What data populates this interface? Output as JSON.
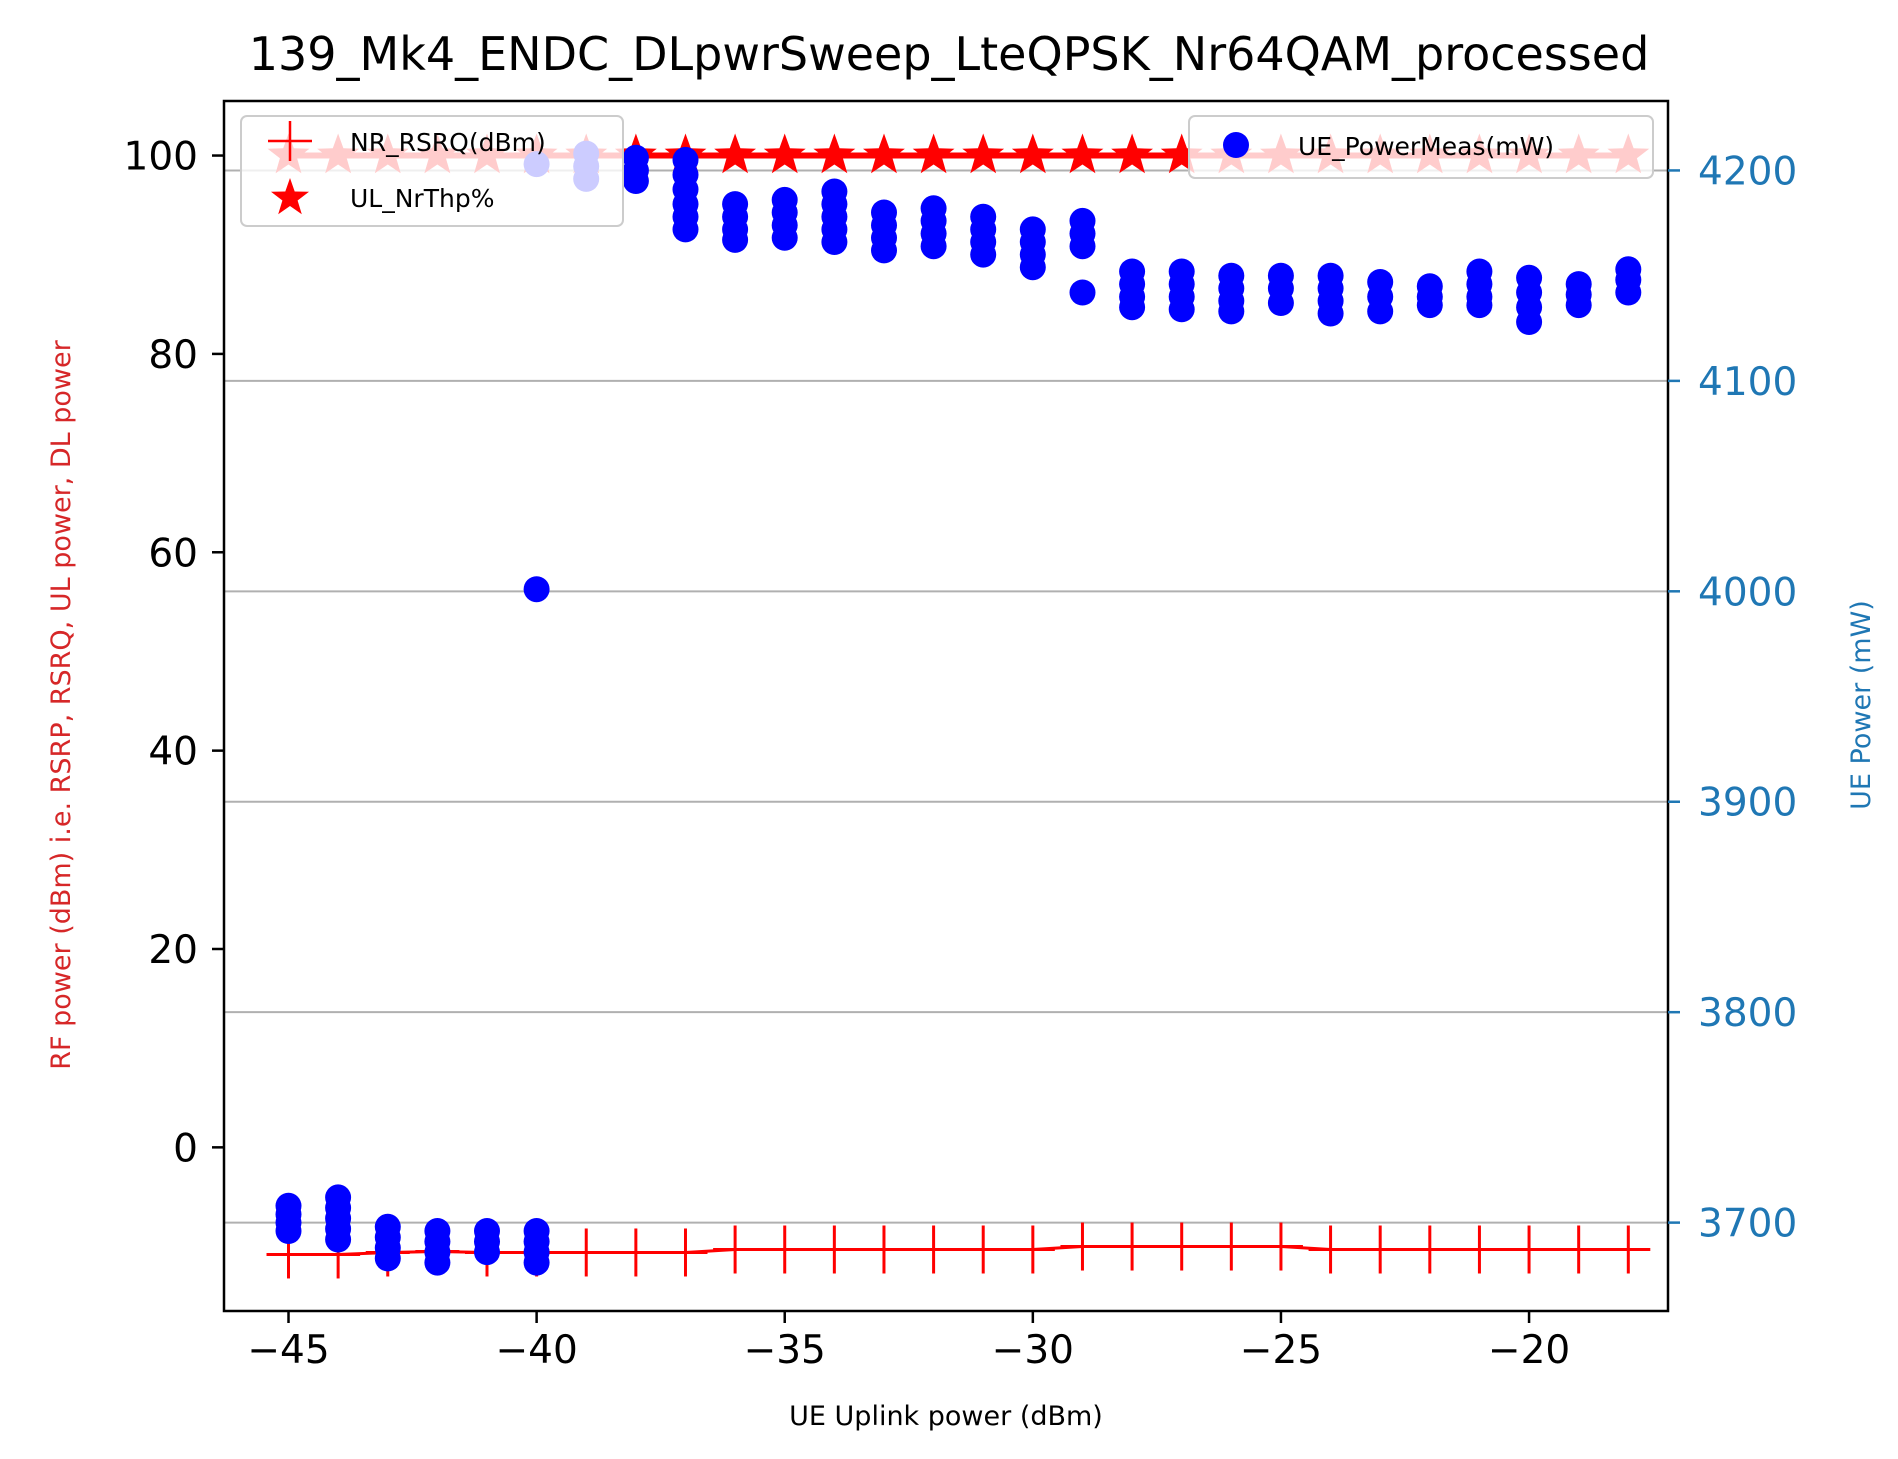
{
  "chart_data": {
    "type": "scatter",
    "title": "139_Mk4_ENDC_DLpwrSweep_LteQPSK_Nr64QAM_processed",
    "xlabel": "UE Uplink power (dBm)",
    "ylabel_left": "RF power (dBm) i.e. RSRP, RSRQ, UL power, DL power",
    "ylabel_right": "UE Power (mW)",
    "xlim": [
      -46.3,
      -17.2
    ],
    "ylim_left": [
      -16.5,
      105.5
    ],
    "ylim_right": [
      3658,
      4233
    ],
    "x_ticks": [
      -45,
      -40,
      -35,
      -30,
      -25,
      -20
    ],
    "x_tick_labels": [
      "−45",
      "−40",
      "−35",
      "−30",
      "−25",
      "−20"
    ],
    "y_ticks_left": [
      0,
      20,
      40,
      60,
      80,
      100
    ],
    "y_ticks_right": [
      3700,
      3800,
      3900,
      4000,
      4100,
      4200
    ],
    "grid": "horizontal lines at right-axis ticks",
    "colors": {
      "left_axis_label": "#d62728",
      "right_axis": "#1f77b4",
      "nr_rsrq": "#ff0000",
      "ul_nrthp": "#ff0000",
      "ue_power": "#0000ff",
      "grid": "#b0b0b0"
    },
    "legend_left": {
      "placement": "upper-left",
      "entries": [
        {
          "label": "NR_RSRQ(dBm)",
          "marker": "plus",
          "color": "#ff0000"
        },
        {
          "label": "UL_NrThp%",
          "marker": "star",
          "color": "#ff0000"
        }
      ]
    },
    "legend_right": {
      "placement": "upper-right",
      "entries": [
        {
          "label": "UE_PowerMeas(mW)",
          "marker": "circle",
          "color": "#0000ff"
        }
      ]
    },
    "series": [
      {
        "name": "NR_RSRQ(dBm)",
        "axis": "left",
        "marker": "plus",
        "x": [
          -45,
          -44,
          -43,
          -42,
          -41,
          -40,
          -39,
          -38,
          -37,
          -36,
          -35,
          -34,
          -33,
          -32,
          -31,
          -30,
          -29,
          -28,
          -27,
          -26,
          -25,
          -24,
          -23,
          -22,
          -21,
          -20,
          -19,
          -18
        ],
        "y": [
          -10.8,
          -10.8,
          -10.6,
          -10.5,
          -10.6,
          -10.6,
          -10.6,
          -10.6,
          -10.6,
          -10.3,
          -10.3,
          -10.3,
          -10.3,
          -10.3,
          -10.3,
          -10.3,
          -10.0,
          -10.0,
          -10.0,
          -10.0,
          -10.0,
          -10.3,
          -10.3,
          -10.3,
          -10.3,
          -10.3,
          -10.3,
          -10.3
        ]
      },
      {
        "name": "UL_NrThp%",
        "axis": "left",
        "marker": "star",
        "x": [
          -45,
          -44,
          -43,
          -42,
          -41,
          -40,
          -39,
          -38,
          -37,
          -36,
          -35,
          -34,
          -33,
          -32,
          -31,
          -30,
          -29,
          -28,
          -27,
          -26,
          -25,
          -24,
          -23,
          -22,
          -21,
          -20,
          -19,
          -18
        ],
        "y": [
          100,
          100,
          100,
          100,
          100,
          100,
          100,
          100,
          100,
          100,
          100,
          100,
          100,
          100,
          100,
          100,
          100,
          100,
          100,
          100,
          100,
          100,
          100,
          100,
          100,
          100,
          100,
          100
        ]
      },
      {
        "name": "UE_PowerMeas(mW)",
        "axis": "right",
        "marker": "circle",
        "points": [
          [
            -45,
            3708
          ],
          [
            -45,
            3704
          ],
          [
            -45,
            3700
          ],
          [
            -45,
            3696
          ],
          [
            -44,
            3712
          ],
          [
            -44,
            3707
          ],
          [
            -44,
            3702
          ],
          [
            -44,
            3697
          ],
          [
            -44,
            3692
          ],
          [
            -43,
            3698
          ],
          [
            -43,
            3693
          ],
          [
            -43,
            3688
          ],
          [
            -43,
            3683
          ],
          [
            -42,
            3696
          ],
          [
            -42,
            3691
          ],
          [
            -42,
            3686
          ],
          [
            -42,
            3681
          ],
          [
            -41,
            3696
          ],
          [
            -41,
            3691
          ],
          [
            -41,
            3686
          ],
          [
            -40,
            4203
          ],
          [
            -40,
            4001
          ],
          [
            -40,
            3696
          ],
          [
            -40,
            3691
          ],
          [
            -40,
            3686
          ],
          [
            -40,
            3681
          ],
          [
            -39,
            4208
          ],
          [
            -39,
            4202
          ],
          [
            -39,
            4196
          ],
          [
            -38,
            4206
          ],
          [
            -38,
            4200
          ],
          [
            -38,
            4195
          ],
          [
            -37,
            4205
          ],
          [
            -37,
            4198
          ],
          [
            -37,
            4191
          ],
          [
            -37,
            4184
          ],
          [
            -37,
            4178
          ],
          [
            -37,
            4172
          ],
          [
            -36,
            4184
          ],
          [
            -36,
            4178
          ],
          [
            -36,
            4172
          ],
          [
            -36,
            4167
          ],
          [
            -35,
            4186
          ],
          [
            -35,
            4180
          ],
          [
            -35,
            4174
          ],
          [
            -35,
            4168
          ],
          [
            -34,
            4190
          ],
          [
            -34,
            4184
          ],
          [
            -34,
            4178
          ],
          [
            -34,
            4172
          ],
          [
            -34,
            4166
          ],
          [
            -33,
            4180
          ],
          [
            -33,
            4174
          ],
          [
            -33,
            4168
          ],
          [
            -33,
            4162
          ],
          [
            -32,
            4182
          ],
          [
            -32,
            4176
          ],
          [
            -32,
            4170
          ],
          [
            -32,
            4164
          ],
          [
            -31,
            4178
          ],
          [
            -31,
            4172
          ],
          [
            -31,
            4166
          ],
          [
            -31,
            4160
          ],
          [
            -30,
            4172
          ],
          [
            -30,
            4166
          ],
          [
            -30,
            4160
          ],
          [
            -30,
            4154
          ],
          [
            -29,
            4176
          ],
          [
            -29,
            4170
          ],
          [
            -29,
            4164
          ],
          [
            -29,
            4142
          ],
          [
            -28,
            4152
          ],
          [
            -28,
            4146
          ],
          [
            -28,
            4140
          ],
          [
            -28,
            4135
          ],
          [
            -27,
            4152
          ],
          [
            -27,
            4146
          ],
          [
            -27,
            4140
          ],
          [
            -27,
            4134
          ],
          [
            -26,
            4150
          ],
          [
            -26,
            4144
          ],
          [
            -26,
            4138
          ],
          [
            -26,
            4133
          ],
          [
            -25,
            4150
          ],
          [
            -25,
            4144
          ],
          [
            -25,
            4137
          ],
          [
            -24,
            4150
          ],
          [
            -24,
            4144
          ],
          [
            -24,
            4138
          ],
          [
            -24,
            4132
          ],
          [
            -23,
            4147
          ],
          [
            -23,
            4140
          ],
          [
            -23,
            4133
          ],
          [
            -22,
            4145
          ],
          [
            -22,
            4140
          ],
          [
            -22,
            4136
          ],
          [
            -21,
            4152
          ],
          [
            -21,
            4146
          ],
          [
            -21,
            4140
          ],
          [
            -21,
            4136
          ],
          [
            -20,
            4149
          ],
          [
            -20,
            4142
          ],
          [
            -20,
            4135
          ],
          [
            -20,
            4128
          ],
          [
            -19,
            4146
          ],
          [
            -19,
            4141
          ],
          [
            -19,
            4136
          ],
          [
            -18,
            4153
          ],
          [
            -18,
            4148
          ],
          [
            -18,
            4142
          ]
        ]
      }
    ]
  }
}
